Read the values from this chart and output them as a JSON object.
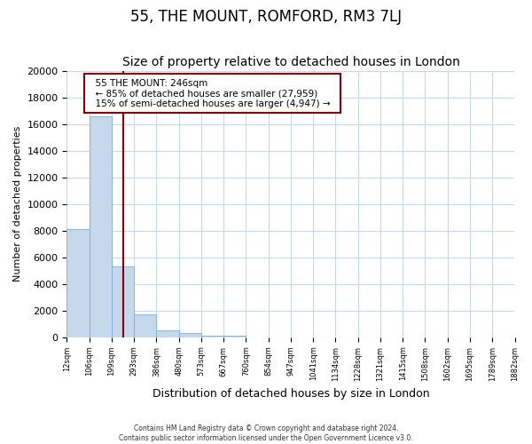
{
  "title": "55, THE MOUNT, ROMFORD, RM3 7LJ",
  "subtitle": "Size of property relative to detached houses in London",
  "xlabel": "Distribution of detached houses by size in London",
  "ylabel": "Number of detached properties",
  "bar_values": [
    8100,
    16600,
    5300,
    1750,
    500,
    300,
    150,
    100,
    0,
    0,
    0,
    0,
    0,
    0,
    0,
    0,
    0,
    0,
    0,
    0
  ],
  "bar_labels": [
    "12sqm",
    "106sqm",
    "199sqm",
    "293sqm",
    "386sqm",
    "480sqm",
    "573sqm",
    "667sqm",
    "760sqm",
    "854sqm",
    "947sqm",
    "1041sqm",
    "1134sqm",
    "1228sqm",
    "1321sqm",
    "1415sqm",
    "1508sqm",
    "1602sqm",
    "1695sqm",
    "1789sqm",
    "1882sqm"
  ],
  "bar_color": "#c5d8ec",
  "bar_edge_color": "#7bafd4",
  "vline_color": "#8b0000",
  "annotation_title": "55 THE MOUNT: 246sqm",
  "annotation_line1": "← 85% of detached houses are smaller (27,959)",
  "annotation_line2": "15% of semi-detached houses are larger (4,947) →",
  "annotation_box_color": "#ffffff",
  "annotation_border_color": "#8b0000",
  "ylim": [
    0,
    20000
  ],
  "yticks": [
    0,
    2000,
    4000,
    6000,
    8000,
    10000,
    12000,
    14000,
    16000,
    18000,
    20000
  ],
  "footer1": "Contains HM Land Registry data © Crown copyright and database right 2024.",
  "footer2": "Contains public sector information licensed under the Open Government Licence v3.0.",
  "bg_color": "#ffffff",
  "grid_color": "#c5d8ec",
  "title_fontsize": 12,
  "subtitle_fontsize": 10,
  "num_bars": 20
}
